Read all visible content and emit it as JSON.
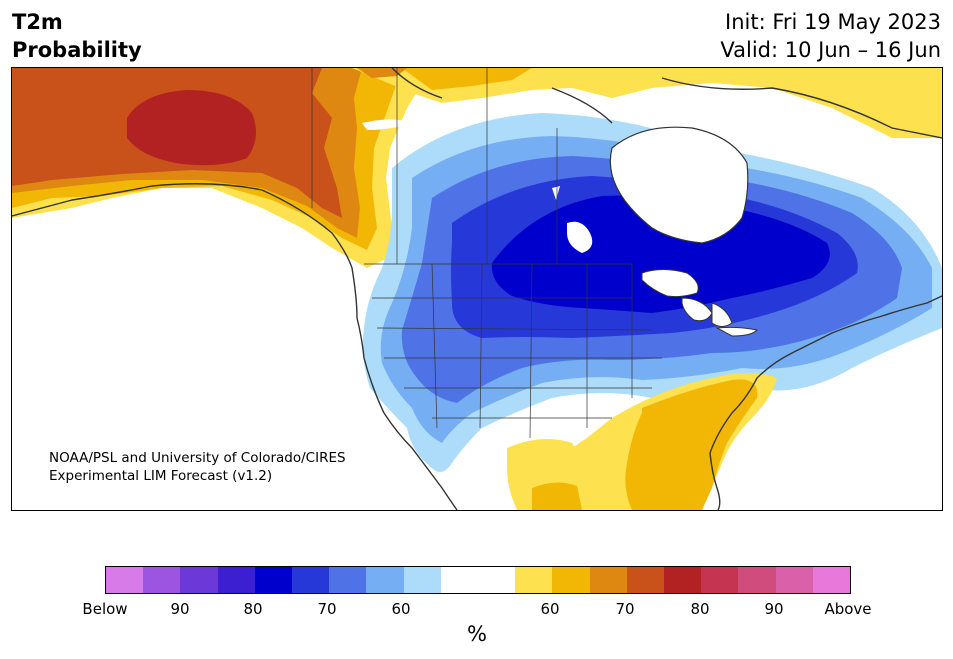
{
  "header": {
    "title_line1": "T2m",
    "title_line2": "Probability",
    "init": "Init: Fri 19 May 2023",
    "valid": "Valid: 10 Jun – 16 Jun"
  },
  "credit": {
    "line1": "NOAA/PSL and University of Colorado/CIRES",
    "line2": "Experimental LIM Forecast (v1.2)"
  },
  "colorbar": {
    "colors": [
      "#d77be8",
      "#9b55e0",
      "#6d38d8",
      "#3c1fd0",
      "#0000cd",
      "#2638d8",
      "#4f73e6",
      "#75aef2",
      "#acdcf9",
      "#ffffff",
      "#ffffff",
      "#fde14f",
      "#f2b705",
      "#de8812",
      "#c8521a",
      "#b22222",
      "#c53552",
      "#d04c7c",
      "#db60aa",
      "#e878da"
    ],
    "labels": [
      "Below",
      "90",
      "80",
      "70",
      "60",
      "60",
      "70",
      "80",
      "90",
      "Above"
    ],
    "unit": "%"
  },
  "map": {
    "region": "North America",
    "palette": {
      "cold_light": "#acdcf9",
      "cold_2": "#75aef2",
      "cold_3": "#4f73e6",
      "cold_4": "#2638d8",
      "cold_5": "#0000cd",
      "warm_1": "#fde14f",
      "warm_2": "#f2b705",
      "warm_3": "#de8812",
      "warm_4": "#c8521a",
      "warm_5": "#b22222",
      "coast": "#333333"
    }
  }
}
